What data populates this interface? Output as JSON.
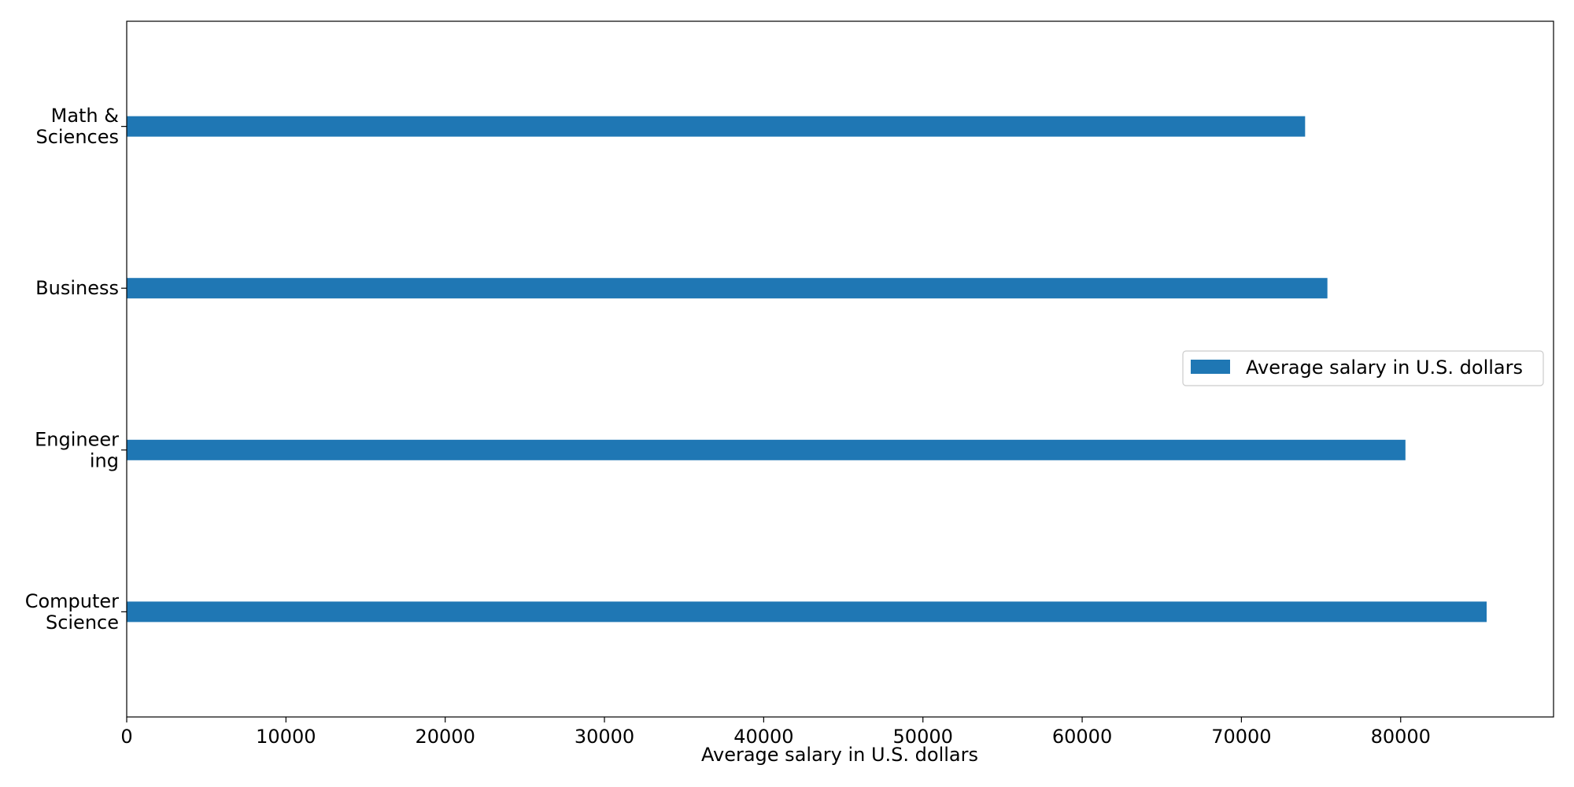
{
  "chart_data": {
    "type": "bar",
    "orientation": "horizontal",
    "categories": [
      [
        "Computer",
        "Science"
      ],
      [
        "Engineer",
        "ing"
      ],
      [
        "Business"
      ],
      [
        "Math &",
        "Sciences"
      ]
    ],
    "series": [
      {
        "name": "Average salary in U.S. dollars",
        "values": [
          85400,
          80300,
          75400,
          74000
        ],
        "color": "#1f77b4"
      }
    ],
    "xlabel": "Average salary in U.S. dollars",
    "ylabel": "",
    "title": "",
    "xlim": [
      0,
      89600
    ],
    "xticks": [
      0,
      10000,
      20000,
      30000,
      40000,
      50000,
      60000,
      70000,
      80000
    ],
    "xtick_labels": [
      "0",
      "10000",
      "20000",
      "30000",
      "40000",
      "50000",
      "60000",
      "70000",
      "80000"
    ],
    "grid": false,
    "legend": {
      "placement": "center-right",
      "entries": [
        "Average salary in U.S. dollars"
      ]
    }
  }
}
